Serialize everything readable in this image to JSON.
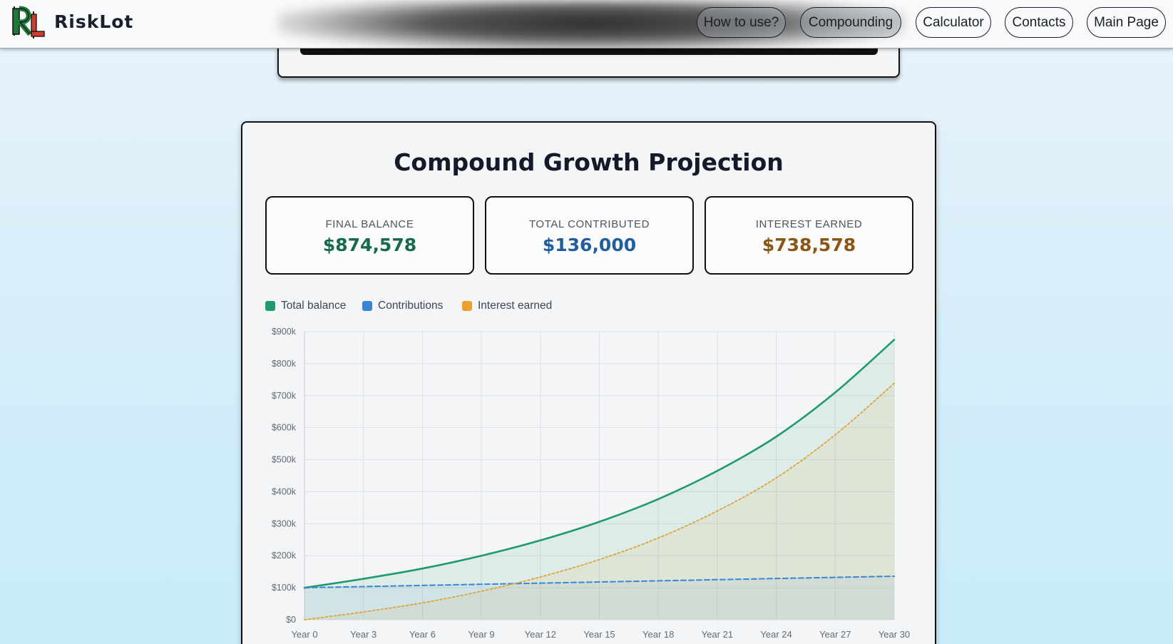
{
  "header": {
    "brand": "RiskLot",
    "nav": [
      {
        "label": "How to use?",
        "dim": true
      },
      {
        "label": "Compounding",
        "dim": true
      },
      {
        "label": "Calculator",
        "dim": false
      },
      {
        "label": "Contacts",
        "dim": false
      },
      {
        "label": "Main Page",
        "dim": false
      }
    ]
  },
  "colors": {
    "total": "#1f9a70",
    "contrib": "#3a86d4",
    "interest": "#dea43c",
    "final_value": "#176b4a",
    "contrib_value": "#1f5f9e",
    "interest_value": "#8a5613"
  },
  "card": {
    "title": "Compound Growth Projection",
    "stats": [
      {
        "label": "FINAL BALANCE",
        "value": "$874,578"
      },
      {
        "label": "TOTAL CONTRIBUTED",
        "value": "$136,000"
      },
      {
        "label": "INTEREST EARNED",
        "value": "$738,578"
      }
    ]
  },
  "chart_data": {
    "type": "area",
    "legend": [
      "Total balance",
      "Contributions",
      "Interest earned"
    ],
    "legend_position": "top-left",
    "x_labels": [
      "Year 0",
      "Year 3",
      "Year 6",
      "Year 9",
      "Year 12",
      "Year 15",
      "Year 18",
      "Year 21",
      "Year 24",
      "Year 27",
      "Year 30"
    ],
    "x": [
      0,
      3,
      6,
      9,
      12,
      15,
      18,
      21,
      24,
      27,
      30
    ],
    "y_ticks": [
      "$0",
      "$100k",
      "$200k",
      "$300k",
      "$400k",
      "$500k",
      "$600k",
      "$700k",
      "$800k",
      "$900k"
    ],
    "ylim": [
      0,
      900000
    ],
    "grid": true,
    "series": [
      {
        "name": "Total balance",
        "style": "solid",
        "values": [
          100000,
          128000,
          160000,
          200000,
          248000,
          306000,
          377000,
          465000,
          572000,
          710000,
          874578
        ]
      },
      {
        "name": "Contributions",
        "style": "dashed",
        "values": [
          100000,
          103600,
          107200,
          110800,
          114400,
          118000,
          121600,
          125200,
          128800,
          132400,
          136000
        ]
      },
      {
        "name": "Interest earned",
        "style": "dotted",
        "values": [
          0,
          24400,
          52800,
          89200,
          133600,
          188000,
          255400,
          339800,
          443200,
          577600,
          738578
        ]
      }
    ]
  }
}
